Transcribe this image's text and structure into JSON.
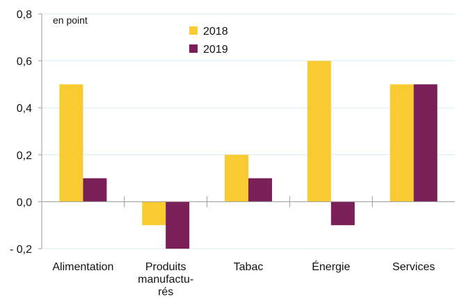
{
  "chart_data": {
    "type": "bar",
    "categories": [
      [
        "Alimentation"
      ],
      [
        "Produits",
        "manufactu-",
        "rés"
      ],
      [
        "Tabac"
      ],
      [
        "Énergie"
      ],
      [
        "Services"
      ]
    ],
    "series": [
      {
        "name": "2018",
        "values": [
          0.5,
          -0.1,
          0.2,
          0.6,
          0.5
        ],
        "color": "#F8CB32"
      },
      {
        "name": "2019",
        "values": [
          0.1,
          -0.2,
          0.1,
          -0.1,
          0.5
        ],
        "color": "#7B1F58"
      }
    ],
    "unit_label": "en point",
    "ylim": [
      -0.2,
      0.8
    ],
    "yticks": [
      0.8,
      0.6,
      0.4,
      0.2,
      0.0,
      -0.2
    ],
    "ytick_labels": [
      "0,8",
      "0,6",
      "0,4",
      "0,2",
      "0,0",
      "- 0,2"
    ],
    "grid": true,
    "grid_color": "#d9ecf2",
    "legend_position": "top-center"
  }
}
